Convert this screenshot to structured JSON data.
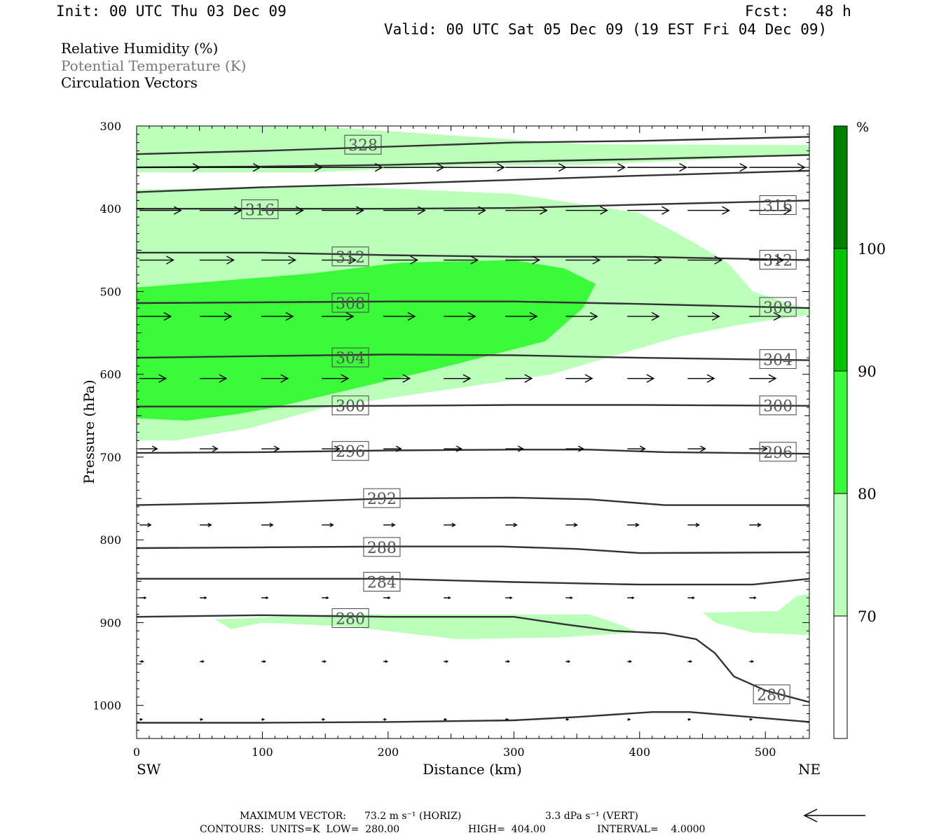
{
  "header": {
    "init": "Init: 00 UTC Thu 03 Dec 09",
    "fcst": "Fcst:   48 h",
    "valid": "Valid: 00 UTC Sat 05 Dec 09 (19 EST Fri 04 Dec 09)",
    "fields": [
      "Relative Humidity (%)",
      "Potential Temperature (K)",
      "Circulation Vectors"
    ]
  },
  "footer": {
    "max_vector_label": "MAXIMUM VECTOR:",
    "max_vector_horiz": "73.2 m s⁻¹ (HORIZ)",
    "max_vector_vert": "3.3 dPa s⁻¹ (VERT)",
    "contours": "CONTOURS:  UNITS=K  LOW=  280.00",
    "high": "HIGH=  404.00",
    "interval": "INTERVAL=    4.0000"
  },
  "colors": {
    "rh70": "#bbffbb",
    "rh80": "#3afa3a",
    "rh90": "#00c300",
    "rh100": "#007f00",
    "theta": "#333333",
    "vector": "#000000"
  },
  "chart_data": {
    "type": "cross-section",
    "xlabel": "Distance (km)",
    "ylabel": "Pressure (hPa)",
    "x_left_label": "SW",
    "x_right_label": "NE",
    "xlim": [
      0,
      535
    ],
    "ylim": [
      300,
      1040
    ],
    "x_ticks": [
      0,
      100,
      200,
      300,
      400,
      500
    ],
    "y_ticks": [
      300,
      400,
      500,
      600,
      700,
      800,
      900,
      1000
    ],
    "colorbar": {
      "unit": "%",
      "levels": [
        70,
        80,
        90,
        100
      ],
      "colors": [
        "#ffffff",
        "#bbffbb",
        "#3afa3a",
        "#00c300",
        "#007f00"
      ]
    },
    "rh_regions": [
      {
        "level": 70,
        "points": [
          [
            0,
            300
          ],
          [
            140,
            300
          ],
          [
            355,
            322
          ],
          [
            470,
            323
          ],
          [
            535,
            323
          ],
          [
            535,
            335
          ],
          [
            355,
            347
          ],
          [
            260,
            348
          ],
          [
            140,
            356
          ],
          [
            0,
            356
          ]
        ]
      },
      {
        "level": 70,
        "points": [
          [
            0,
            377
          ],
          [
            150,
            372
          ],
          [
            300,
            382
          ],
          [
            400,
            405
          ],
          [
            440,
            438
          ],
          [
            470,
            465
          ],
          [
            490,
            500
          ],
          [
            535,
            522
          ],
          [
            535,
            528
          ],
          [
            480,
            540
          ],
          [
            430,
            555
          ],
          [
            330,
            600
          ],
          [
            150,
            640
          ],
          [
            90,
            665
          ],
          [
            30,
            680
          ],
          [
            0,
            680
          ]
        ]
      },
      {
        "level": 80,
        "points": [
          [
            0,
            495
          ],
          [
            60,
            488
          ],
          [
            140,
            478
          ],
          [
            210,
            465
          ],
          [
            300,
            462
          ],
          [
            340,
            472
          ],
          [
            365,
            491
          ],
          [
            355,
            520
          ],
          [
            325,
            560
          ],
          [
            240,
            593
          ],
          [
            110,
            640
          ],
          [
            80,
            648
          ],
          [
            40,
            656
          ],
          [
            0,
            653
          ]
        ]
      },
      {
        "level": 70,
        "points": [
          [
            62,
            896
          ],
          [
            160,
            890
          ],
          [
            260,
            890
          ],
          [
            360,
            890
          ],
          [
            380,
            900
          ],
          [
            400,
            912
          ],
          [
            335,
            918
          ],
          [
            255,
            920
          ],
          [
            170,
            905
          ],
          [
            100,
            900
          ],
          [
            75,
            908
          ]
        ]
      },
      {
        "level": 70,
        "points": [
          [
            450,
            888
          ],
          [
            510,
            886
          ],
          [
            525,
            868
          ],
          [
            535,
            865
          ],
          [
            535,
            915
          ],
          [
            490,
            912
          ],
          [
            460,
            900
          ]
        ]
      }
    ],
    "theta_contours": [
      {
        "value": 328,
        "label": "328",
        "label_at": [
          180,
          323
        ],
        "points": [
          [
            0,
            334
          ],
          [
            100,
            330
          ],
          [
            200,
            325
          ],
          [
            300,
            320
          ],
          [
            400,
            318
          ],
          [
            535,
            313
          ]
        ]
      },
      {
        "value": 324,
        "label": "",
        "points": [
          [
            0,
            350
          ],
          [
            100,
            349
          ],
          [
            200,
            347
          ],
          [
            300,
            343
          ],
          [
            400,
            340
          ],
          [
            535,
            335
          ]
        ]
      },
      {
        "value": 320,
        "label": "",
        "points": [
          [
            0,
            380
          ],
          [
            100,
            374
          ],
          [
            200,
            370
          ],
          [
            300,
            365
          ],
          [
            400,
            360
          ],
          [
            535,
            354
          ]
        ]
      },
      {
        "value": 316,
        "label": "316",
        "label_at": [
          98,
          401
        ],
        "labels_extra": [
          [
            510,
            396
          ]
        ],
        "points": [
          [
            0,
            400
          ],
          [
            100,
            400
          ],
          [
            200,
            400
          ],
          [
            300,
            399
          ],
          [
            400,
            395
          ],
          [
            535,
            390
          ]
        ]
      },
      {
        "value": 312,
        "label": "312",
        "label_at": [
          170,
          458
        ],
        "labels_extra": [
          [
            510,
            462
          ]
        ],
        "points": [
          [
            0,
            453
          ],
          [
            100,
            453
          ],
          [
            200,
            456
          ],
          [
            300,
            458
          ],
          [
            400,
            458
          ],
          [
            535,
            462
          ]
        ]
      },
      {
        "value": 308,
        "label": "308",
        "label_at": [
          170,
          514
        ],
        "labels_extra": [
          [
            510,
            519
          ]
        ],
        "points": [
          [
            0,
            514
          ],
          [
            100,
            513
          ],
          [
            200,
            512
          ],
          [
            300,
            512
          ],
          [
            400,
            515
          ],
          [
            535,
            520
          ]
        ]
      },
      {
        "value": 304,
        "label": "304",
        "label_at": [
          170,
          580
        ],
        "labels_extra": [
          [
            510,
            582
          ]
        ],
        "points": [
          [
            0,
            580
          ],
          [
            100,
            578
          ],
          [
            200,
            576
          ],
          [
            300,
            577
          ],
          [
            400,
            580
          ],
          [
            535,
            583
          ]
        ]
      },
      {
        "value": 300,
        "label": "300",
        "label_at": [
          170,
          638
        ],
        "labels_extra": [
          [
            510,
            638
          ]
        ],
        "points": [
          [
            0,
            639
          ],
          [
            100,
            639
          ],
          [
            200,
            638
          ],
          [
            300,
            637
          ],
          [
            400,
            637
          ],
          [
            535,
            638
          ]
        ]
      },
      {
        "value": 296,
        "label": "296",
        "label_at": [
          170,
          693
        ],
        "labels_extra": [
          [
            510,
            694
          ]
        ],
        "points": [
          [
            0,
            695
          ],
          [
            100,
            694
          ],
          [
            200,
            692
          ],
          [
            300,
            691
          ],
          [
            360,
            691
          ],
          [
            420,
            694
          ],
          [
            535,
            696
          ]
        ]
      },
      {
        "value": 292,
        "label": "292",
        "label_at": [
          195,
          750
        ],
        "points": [
          [
            0,
            758
          ],
          [
            100,
            755
          ],
          [
            200,
            750
          ],
          [
            300,
            749
          ],
          [
            360,
            751
          ],
          [
            420,
            758
          ],
          [
            535,
            758
          ]
        ]
      },
      {
        "value": 288,
        "label": "288",
        "label_at": [
          195,
          809
        ],
        "points": [
          [
            0,
            810
          ],
          [
            100,
            809
          ],
          [
            200,
            808
          ],
          [
            290,
            808
          ],
          [
            350,
            811
          ],
          [
            400,
            816
          ],
          [
            535,
            815
          ]
        ]
      },
      {
        "value": 284,
        "label": "284",
        "label_at": [
          195,
          851
        ],
        "points": [
          [
            0,
            847
          ],
          [
            100,
            847
          ],
          [
            200,
            847
          ],
          [
            300,
            851
          ],
          [
            400,
            854
          ],
          [
            490,
            854
          ],
          [
            535,
            847
          ]
        ]
      },
      {
        "value": 280,
        "label": "280",
        "label_at": [
          170,
          895
        ],
        "labels_extra": [
          [
            505,
            987
          ]
        ],
        "points": [
          [
            0,
            893
          ],
          [
            100,
            891
          ],
          [
            200,
            893
          ],
          [
            300,
            893
          ],
          [
            340,
            902
          ],
          [
            380,
            910
          ],
          [
            420,
            913
          ],
          [
            445,
            920
          ],
          [
            460,
            937
          ],
          [
            475,
            965
          ],
          [
            500,
            982
          ],
          [
            535,
            996
          ]
        ]
      },
      {
        "value": 276,
        "label": "",
        "points": [
          [
            0,
            1021
          ],
          [
            100,
            1021
          ],
          [
            200,
            1020
          ],
          [
            300,
            1018
          ],
          [
            350,
            1014
          ],
          [
            410,
            1008
          ],
          [
            440,
            1008
          ],
          [
            480,
            1013
          ],
          [
            535,
            1020
          ]
        ]
      }
    ],
    "vectors": [
      {
        "p": 350,
        "dx": 50,
        "xs": [
          0,
          48,
          97,
          145,
          194,
          242,
          291,
          339,
          388,
          436,
          485
        ],
        "lens": [
          48,
          48,
          48,
          48,
          48,
          48,
          48,
          47,
          47,
          47,
          44
        ]
      },
      {
        "p": 402,
        "xs": [
          0,
          48,
          97,
          145,
          194,
          242,
          291,
          339,
          388,
          436,
          485
        ],
        "lens": [
          33,
          33,
          33,
          33,
          33,
          33,
          33,
          33,
          33,
          33,
          33
        ]
      },
      {
        "p": 462,
        "xs": [
          0,
          48,
          97,
          145,
          194,
          242,
          291,
          339,
          388,
          436,
          485
        ],
        "lens": [
          27,
          27,
          27,
          27,
          27,
          27,
          27,
          27,
          27,
          27,
          27
        ]
      },
      {
        "p": 530,
        "xs": [
          0,
          48,
          97,
          145,
          194,
          242,
          291,
          339,
          388,
          436,
          485
        ],
        "lens": [
          25,
          25,
          25,
          25,
          25,
          25,
          25,
          25,
          25,
          25,
          25
        ]
      },
      {
        "p": 605,
        "xs": [
          0,
          48,
          97,
          145,
          194,
          242,
          291,
          339,
          388,
          436,
          485
        ],
        "lens": [
          21,
          21,
          21,
          21,
          21,
          21,
          21,
          21,
          21,
          21,
          21
        ]
      },
      {
        "p": 690,
        "xs": [
          0,
          48,
          97,
          145,
          194,
          242,
          291,
          339,
          388,
          436,
          485
        ],
        "lens": [
          14,
          14,
          14,
          14,
          14,
          14,
          14,
          14,
          14,
          14,
          14
        ]
      },
      {
        "p": 782,
        "xs": [
          0,
          48,
          97,
          145,
          194,
          242,
          291,
          339,
          388,
          436,
          485
        ],
        "lens": [
          9,
          9,
          9,
          9,
          9,
          9,
          9,
          9,
          9,
          9,
          9
        ]
      },
      {
        "p": 870,
        "xs": [
          0,
          48,
          97,
          145,
          194,
          242,
          291,
          339,
          388,
          436,
          485
        ],
        "lens": [
          5,
          5,
          5,
          5,
          5,
          5,
          5,
          5,
          5,
          5,
          5
        ]
      },
      {
        "p": 947,
        "xs": [
          0,
          48,
          97,
          145,
          194,
          242,
          291,
          339,
          388,
          436,
          485
        ],
        "lens": [
          3,
          3,
          3,
          3,
          3,
          3,
          3,
          3,
          3,
          3,
          3
        ]
      },
      {
        "p": 1017,
        "xs": [
          0,
          48,
          97,
          145,
          194,
          242,
          291,
          339,
          388,
          436,
          485
        ],
        "lens": [
          2,
          2,
          2,
          2,
          2,
          2,
          2,
          2,
          2,
          2,
          2
        ]
      }
    ]
  }
}
